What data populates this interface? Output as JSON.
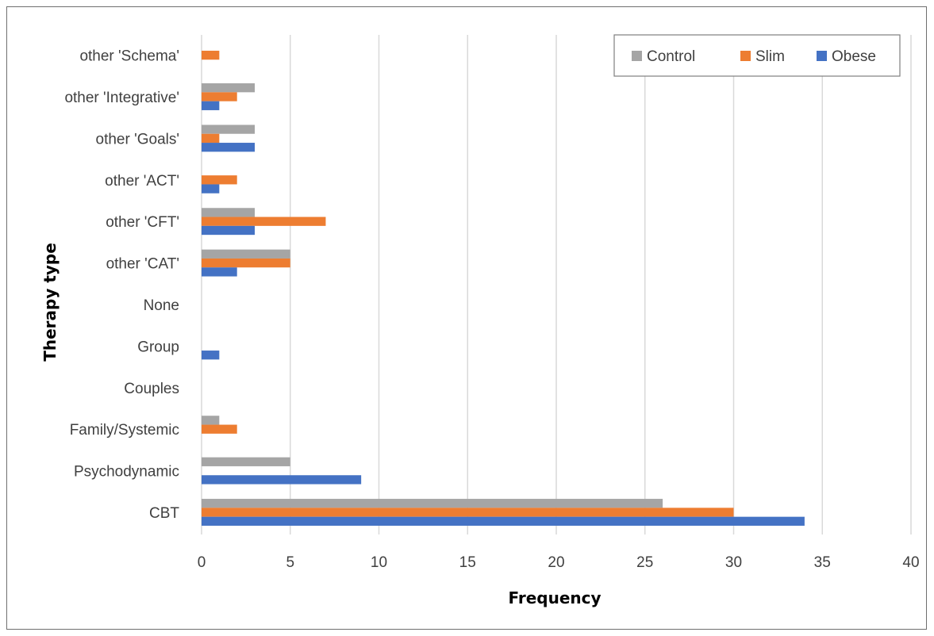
{
  "chart_data": {
    "type": "bar",
    "orientation": "horizontal",
    "title": "",
    "xlabel": "Frequency",
    "ylabel": "Therapy type",
    "xlim": [
      0,
      40
    ],
    "xticks": [
      0,
      5,
      10,
      15,
      20,
      25,
      30,
      35,
      40
    ],
    "grid": "vertical",
    "legend_position": "top-right",
    "categories": [
      "CBT",
      "Psychodynamic",
      "Family/Systemic",
      "Couples",
      "Group",
      "None",
      "other 'CAT'",
      "other 'CFT'",
      "other 'ACT'",
      "other 'Goals'",
      "other 'Integrative'",
      "other 'Schema'"
    ],
    "series": [
      {
        "name": "Control",
        "color": "#a5a5a5",
        "values": [
          26,
          5,
          1,
          0,
          0,
          0,
          5,
          3,
          0,
          3,
          3,
          0
        ]
      },
      {
        "name": "Slim",
        "color": "#ed7d31",
        "values": [
          30,
          0,
          2,
          0,
          0,
          0,
          5,
          7,
          2,
          1,
          2,
          1
        ]
      },
      {
        "name": "Obese",
        "color": "#4472c4",
        "values": [
          34,
          9,
          0,
          0,
          1,
          0,
          2,
          3,
          1,
          3,
          1,
          0
        ]
      }
    ]
  }
}
